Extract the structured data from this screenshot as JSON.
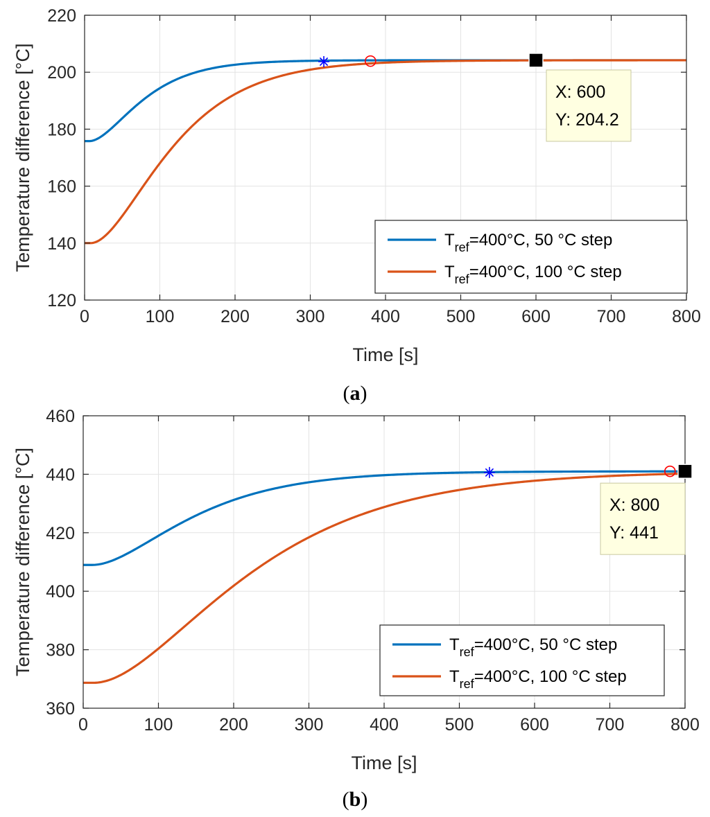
{
  "figure": {
    "caption_a": "a",
    "caption_b": "b"
  },
  "chart_data": [
    {
      "id": "a",
      "type": "line",
      "xlabel": "Time [s]",
      "ylabel": "Temperature difference [°C]",
      "xlim": [
        0,
        800
      ],
      "ylim": [
        120,
        220
      ],
      "xticks": [
        0,
        100,
        200,
        300,
        400,
        500,
        600,
        700,
        800
      ],
      "yticks": [
        120,
        140,
        160,
        180,
        200,
        220
      ],
      "grid": true,
      "legend_position": "bottom-right",
      "series": [
        {
          "name": "T_ref=400°C, 50 °C step",
          "legend_base": "T",
          "legend_sub": "ref",
          "legend_rest": "=400°C, 50 °C step",
          "color": "#0072BD",
          "start": 175.8,
          "end": 204.2,
          "tau": 42,
          "delay": 6
        },
        {
          "name": "T_ref=400°C, 100 °C step",
          "legend_base": "T",
          "legend_sub": "ref",
          "legend_rest": "=400°C, 100 °C step",
          "color": "#D95319",
          "start": 140,
          "end": 204.2,
          "tau": 62,
          "delay": 8
        }
      ],
      "markers": [
        {
          "shape": "asterisk",
          "color": "#0000FF",
          "x": 318,
          "y": 203.7
        },
        {
          "shape": "circle",
          "color": "#FF0000",
          "x": 380,
          "y": 203.9
        },
        {
          "shape": "square",
          "color": "#000000",
          "x": 600,
          "y": 204.2
        }
      ],
      "datatip": {
        "x_text": "X: 600",
        "y_text": "Y: 204.2",
        "x": 600,
        "y": 204.2
      }
    },
    {
      "id": "b",
      "type": "line",
      "xlabel": "Time [s]",
      "ylabel": "Temperature difference [°C]",
      "xlim": [
        0,
        800
      ],
      "ylim": [
        360,
        460
      ],
      "xticks": [
        0,
        100,
        200,
        300,
        400,
        500,
        600,
        700,
        800
      ],
      "yticks": [
        360,
        380,
        400,
        420,
        440,
        460
      ],
      "grid": true,
      "legend_position": "bottom-right",
      "series": [
        {
          "name": "T_ref=400°C, 50 °C step",
          "legend_base": "T",
          "legend_sub": "ref",
          "legend_rest": "=400°C, 50 °C step",
          "color": "#0072BD",
          "start": 409,
          "end": 441,
          "tau": 78,
          "delay": 12
        },
        {
          "name": "T_ref=400°C, 100 °C step",
          "legend_base": "T",
          "legend_sub": "ref",
          "legend_rest": "=400°C, 100 °C step",
          "color": "#D95319",
          "start": 368.7,
          "end": 441,
          "tau": 120,
          "delay": 14
        }
      ],
      "markers": [
        {
          "shape": "asterisk",
          "color": "#0000FF",
          "x": 540,
          "y": 440.6
        },
        {
          "shape": "circle",
          "color": "#FF0000",
          "x": 780,
          "y": 441
        },
        {
          "shape": "square",
          "color": "#000000",
          "x": 800,
          "y": 441
        }
      ],
      "datatip": {
        "x_text": "X: 800",
        "y_text": "Y: 441",
        "x": 800,
        "y": 441
      }
    }
  ]
}
